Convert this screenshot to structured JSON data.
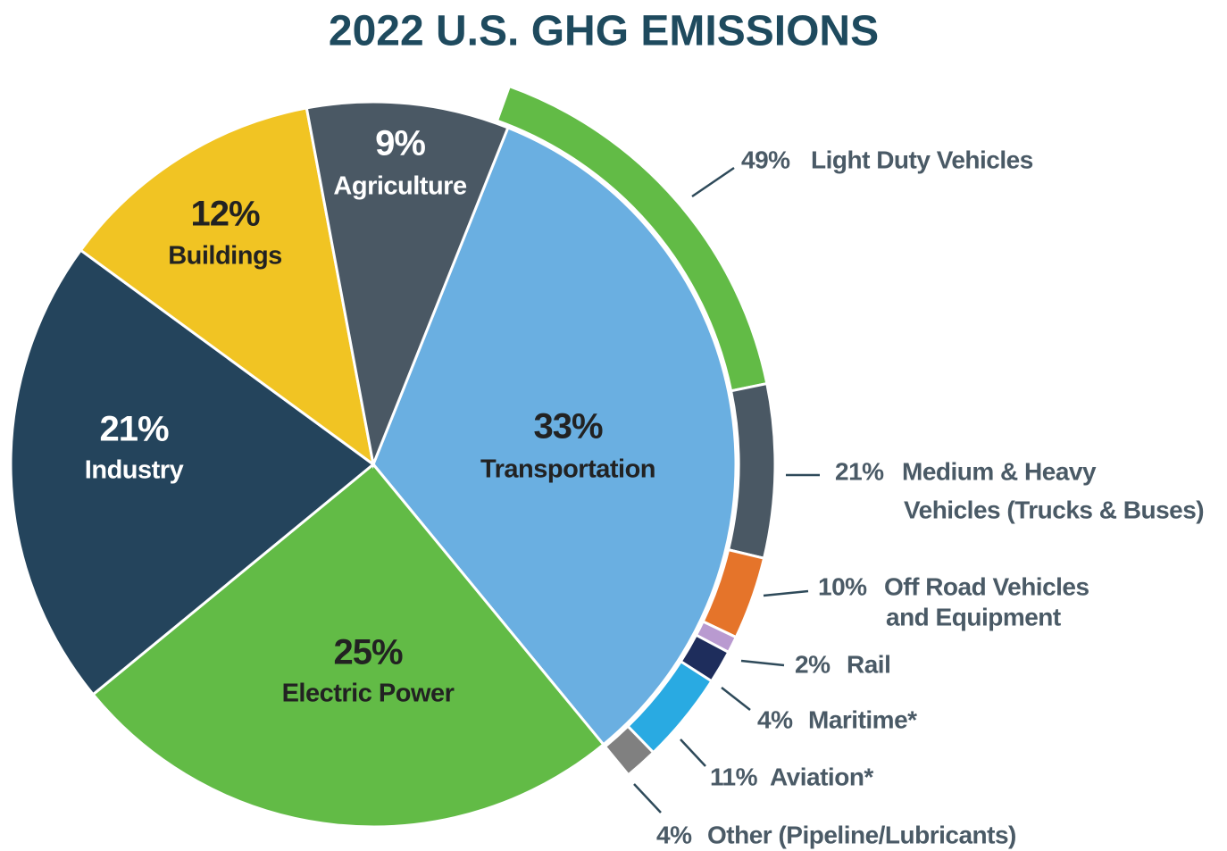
{
  "chart_data": {
    "type": "pie",
    "title": "2022 U.S. GHG EMISSIONS",
    "categories": [
      "Transportation",
      "Electric Power",
      "Industry",
      "Buildings",
      "Agriculture"
    ],
    "values": [
      33,
      25,
      21,
      12,
      9
    ],
    "value_labels": [
      "33%",
      "25%",
      "21%",
      "12%",
      "9%"
    ],
    "colors": [
      "#6aafe1",
      "#62bb46",
      "#24445c",
      "#f1c423",
      "#4a5864"
    ],
    "breakdown": {
      "parent": "Transportation",
      "categories": [
        [
          "Light Duty Vehicles"
        ],
        [
          "Medium & Heavy",
          "Vehicles (Trucks & Buses)"
        ],
        [
          "Off Road Vehicles",
          "and Equipment"
        ],
        [
          "Rail"
        ],
        [
          "Maritime*"
        ],
        [
          "Aviation*"
        ],
        [
          "Other (Pipeline/Lubricants)"
        ]
      ],
      "values": [
        49,
        21,
        10,
        2,
        4,
        11,
        4
      ],
      "value_labels": [
        "49%",
        "21%",
        "10%",
        "2%",
        "4%",
        "11%",
        "4%"
      ],
      "colors": [
        "#62bb46",
        "#4a5864",
        "#e5742a",
        "#b99ad0",
        "#1e2d5c",
        "#29aae2",
        "#808080"
      ]
    }
  }
}
